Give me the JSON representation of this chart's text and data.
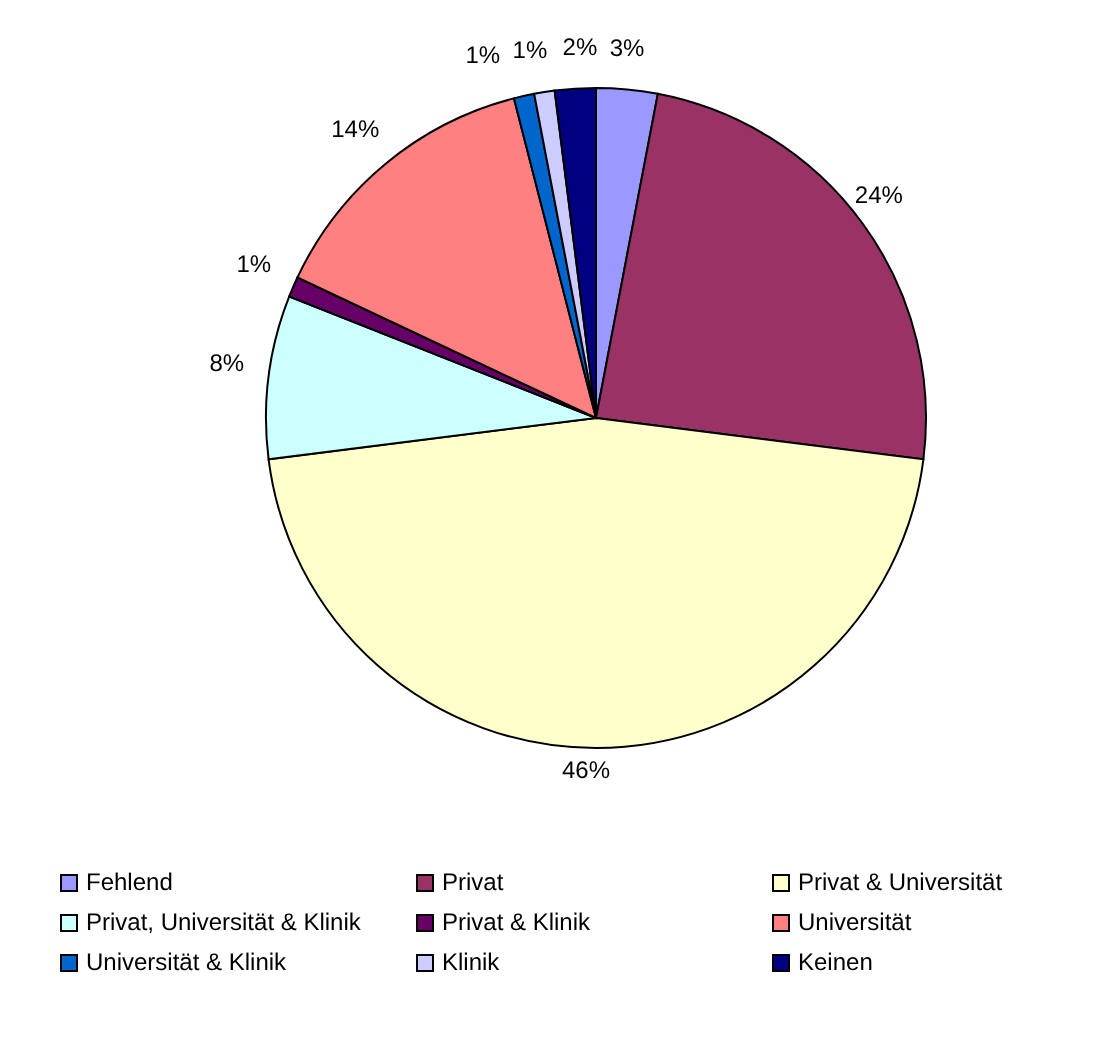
{
  "chart_data": {
    "type": "pie",
    "categories": [
      "Fehlend",
      "Privat",
      "Privat & Universität",
      "Privat, Universität & Klinik",
      "Privat & Klinik",
      "Universität",
      "Universität & Klinik",
      "Klinik",
      "Keinen"
    ],
    "values": [
      3,
      24,
      46,
      8,
      1,
      14,
      1,
      1,
      2
    ],
    "value_labels": [
      "3%",
      "24%",
      "46%",
      "8%",
      "1%",
      "14%",
      "1%",
      "1%",
      "2%"
    ],
    "colors": [
      "#9999ff",
      "#993366",
      "#ffffcc",
      "#ccffff",
      "#660066",
      "#ff8080",
      "#0066cc",
      "#ccccff",
      "#000080"
    ],
    "legend": "bottom"
  }
}
